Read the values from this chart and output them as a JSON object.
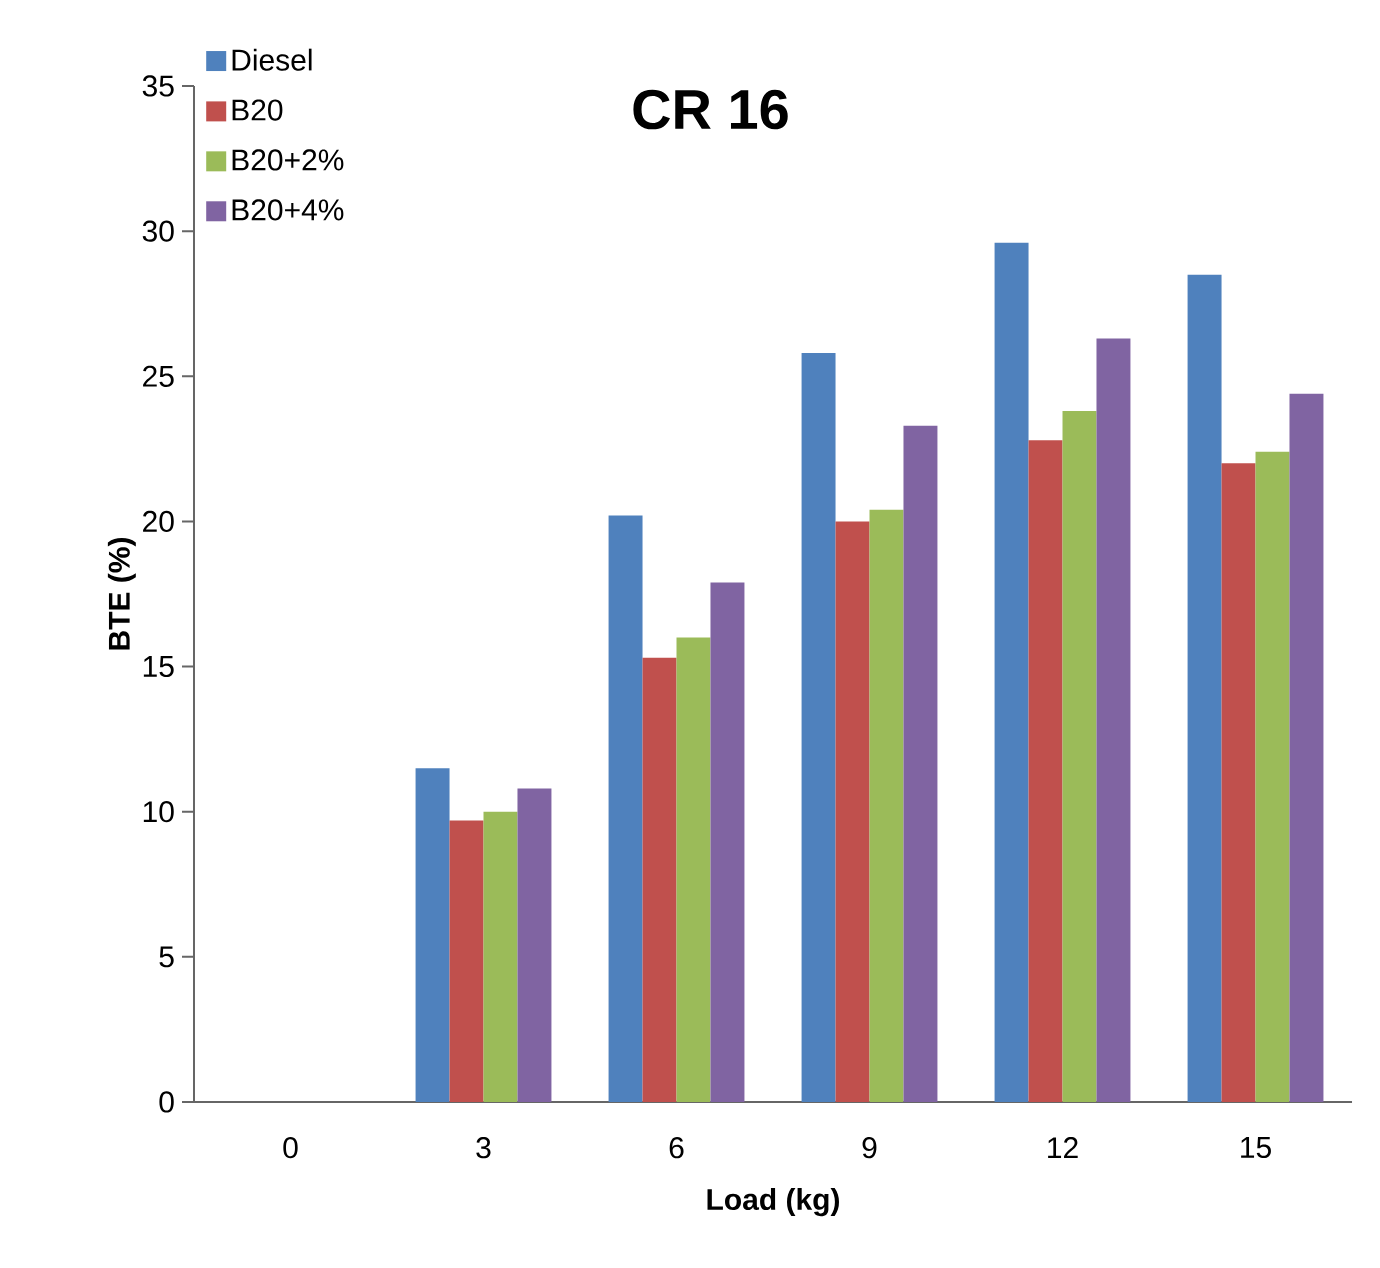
{
  "chart_data": {
    "type": "bar",
    "title": "CR 16",
    "xlabel": "Load (kg)",
    "ylabel": "BTE (%)",
    "categories": [
      "0",
      "3",
      "6",
      "9",
      "12",
      "15"
    ],
    "series": [
      {
        "name": "Diesel",
        "color": "#4f81bd",
        "values": [
          null,
          11.5,
          20.2,
          25.8,
          29.6,
          28.5
        ]
      },
      {
        "name": "B20",
        "color": "#c0504d",
        "values": [
          null,
          9.7,
          15.3,
          20.0,
          22.8,
          22.0
        ]
      },
      {
        "name": "B20+2%",
        "color": "#9bbb59",
        "values": [
          null,
          10.0,
          16.0,
          20.4,
          23.8,
          22.4
        ]
      },
      {
        "name": "B20+4%",
        "color": "#8064a2",
        "values": [
          null,
          10.8,
          17.9,
          23.3,
          26.3,
          24.4
        ]
      }
    ],
    "ylim": [
      0,
      35
    ],
    "yticks": [
      0,
      5,
      10,
      15,
      20,
      25,
      30,
      35
    ],
    "grid": false,
    "legend": "top left"
  }
}
